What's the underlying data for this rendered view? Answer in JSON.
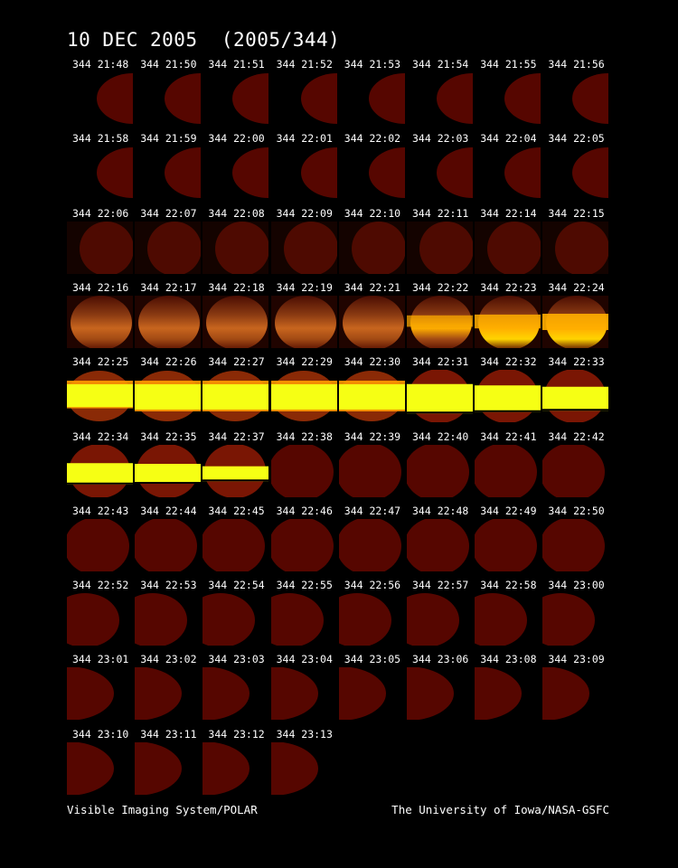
{
  "header": {
    "title": "10 DEC 2005  (2005/344)"
  },
  "colors": {
    "background": "#000000",
    "disk": "#560600",
    "glow_dim": "#8a3a12",
    "glow_bright": "#ffae00",
    "saturated": "#f6ff14"
  },
  "frames": [
    {
      "label": "344 21:48",
      "kind": "half-disk"
    },
    {
      "label": "344 21:50",
      "kind": "half-disk"
    },
    {
      "label": "344 21:51",
      "kind": "half-disk"
    },
    {
      "label": "344 21:52",
      "kind": "half-disk"
    },
    {
      "label": "344 21:53",
      "kind": "half-disk"
    },
    {
      "label": "344 21:54",
      "kind": "half-disk"
    },
    {
      "label": "344 21:55",
      "kind": "half-disk"
    },
    {
      "label": "344 21:56",
      "kind": "half-disk"
    },
    {
      "label": "344 21:58",
      "kind": "half-disk"
    },
    {
      "label": "344 21:59",
      "kind": "half-disk"
    },
    {
      "label": "344 22:00",
      "kind": "half-disk"
    },
    {
      "label": "344 22:01",
      "kind": "half-disk"
    },
    {
      "label": "344 22:02",
      "kind": "half-disk"
    },
    {
      "label": "344 22:03",
      "kind": "half-disk"
    },
    {
      "label": "344 22:04",
      "kind": "half-disk"
    },
    {
      "label": "344 22:05",
      "kind": "half-disk"
    },
    {
      "label": "344 22:06",
      "kind": "disk-dim"
    },
    {
      "label": "344 22:07",
      "kind": "disk-dim"
    },
    {
      "label": "344 22:08",
      "kind": "disk-dim"
    },
    {
      "label": "344 22:09",
      "kind": "disk-dim"
    },
    {
      "label": "344 22:10",
      "kind": "disk-dim"
    },
    {
      "label": "344 22:11",
      "kind": "disk-dim"
    },
    {
      "label": "344 22:14",
      "kind": "disk-dim"
    },
    {
      "label": "344 22:15",
      "kind": "disk-dim"
    },
    {
      "label": "344 22:16",
      "kind": "glow",
      "level": 0.15
    },
    {
      "label": "344 22:17",
      "kind": "glow",
      "level": 0.25
    },
    {
      "label": "344 22:18",
      "kind": "glow",
      "level": 0.3
    },
    {
      "label": "344 22:19",
      "kind": "glow",
      "level": 0.4
    },
    {
      "label": "344 22:21",
      "kind": "glow",
      "level": 0.55
    },
    {
      "label": "344 22:22",
      "kind": "glow",
      "level": 0.7
    },
    {
      "label": "344 22:23",
      "kind": "glow",
      "level": 0.85
    },
    {
      "label": "344 22:24",
      "kind": "glow",
      "level": 1.0
    },
    {
      "label": "344 22:25",
      "kind": "saturated",
      "band": 0.9
    },
    {
      "label": "344 22:26",
      "kind": "saturated",
      "band": 1.0
    },
    {
      "label": "344 22:27",
      "kind": "saturated",
      "band": 1.0
    },
    {
      "label": "344 22:29",
      "kind": "saturated",
      "band": 1.0
    },
    {
      "label": "344 22:30",
      "kind": "saturated",
      "band": 1.0
    },
    {
      "label": "344 22:31",
      "kind": "saturated-bar",
      "band": 0.75
    },
    {
      "label": "344 22:32",
      "kind": "saturated-bar",
      "band": 0.65
    },
    {
      "label": "344 22:33",
      "kind": "saturated-bar",
      "band": 0.55
    },
    {
      "label": "344 22:34",
      "kind": "saturated-bar",
      "band": 0.45
    },
    {
      "label": "344 22:35",
      "kind": "saturated-bar",
      "band": 0.4
    },
    {
      "label": "344 22:37",
      "kind": "saturated-bar",
      "band": 0.22
    },
    {
      "label": "344 22:38",
      "kind": "disk"
    },
    {
      "label": "344 22:39",
      "kind": "disk"
    },
    {
      "label": "344 22:40",
      "kind": "disk"
    },
    {
      "label": "344 22:41",
      "kind": "disk"
    },
    {
      "label": "344 22:42",
      "kind": "disk"
    },
    {
      "label": "344 22:43",
      "kind": "disk"
    },
    {
      "label": "344 22:44",
      "kind": "disk"
    },
    {
      "label": "344 22:45",
      "kind": "disk"
    },
    {
      "label": "344 22:46",
      "kind": "disk"
    },
    {
      "label": "344 22:47",
      "kind": "disk"
    },
    {
      "label": "344 22:48",
      "kind": "disk"
    },
    {
      "label": "344 22:49",
      "kind": "disk"
    },
    {
      "label": "344 22:50",
      "kind": "disk"
    },
    {
      "label": "344 22:52",
      "kind": "disk-right"
    },
    {
      "label": "344 22:53",
      "kind": "disk-right"
    },
    {
      "label": "344 22:54",
      "kind": "disk-right"
    },
    {
      "label": "344 22:55",
      "kind": "disk-right"
    },
    {
      "label": "344 22:56",
      "kind": "disk-right"
    },
    {
      "label": "344 22:57",
      "kind": "disk-right"
    },
    {
      "label": "344 22:58",
      "kind": "disk-right"
    },
    {
      "label": "344 23:00",
      "kind": "disk-right"
    },
    {
      "label": "344 23:01",
      "kind": "half-disk-left"
    },
    {
      "label": "344 23:02",
      "kind": "half-disk-left"
    },
    {
      "label": "344 23:03",
      "kind": "half-disk-left"
    },
    {
      "label": "344 23:04",
      "kind": "half-disk-left"
    },
    {
      "label": "344 23:05",
      "kind": "half-disk-left"
    },
    {
      "label": "344 23:06",
      "kind": "half-disk-left"
    },
    {
      "label": "344 23:08",
      "kind": "half-disk-left"
    },
    {
      "label": "344 23:09",
      "kind": "half-disk-left"
    },
    {
      "label": "344 23:10",
      "kind": "half-disk-left"
    },
    {
      "label": "344 23:11",
      "kind": "half-disk-left"
    },
    {
      "label": "344 23:12",
      "kind": "half-disk-left"
    },
    {
      "label": "344 23:13",
      "kind": "half-disk-left"
    }
  ],
  "footer": {
    "left": "Visible Imaging System/POLAR",
    "right": "The University of Iowa/NASA-GSFC"
  }
}
